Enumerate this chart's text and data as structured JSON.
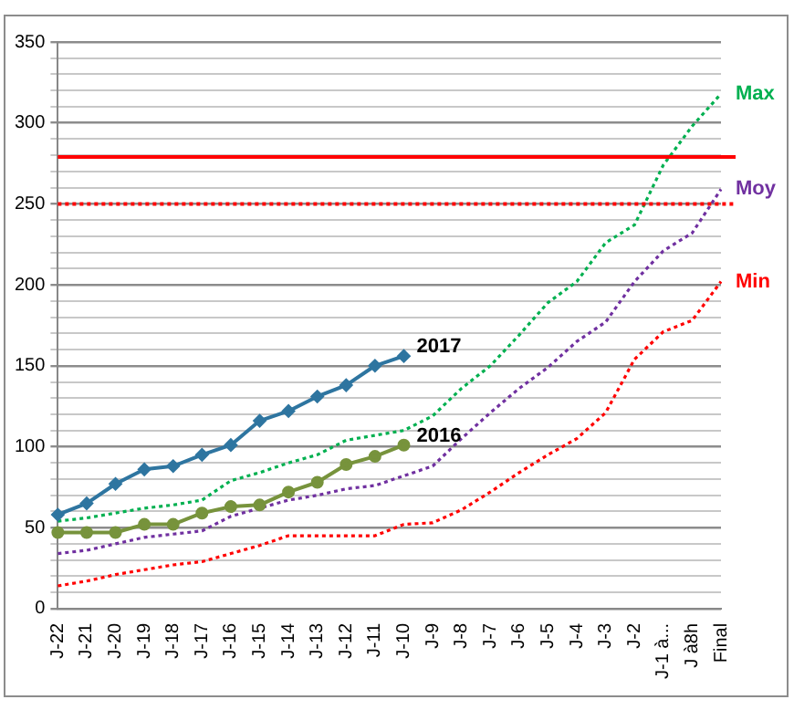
{
  "chart_data": {
    "type": "line",
    "categories": [
      "J-22",
      "J-21",
      "J-20",
      "J-19",
      "J-18",
      "J-17",
      "J-16",
      "J-15",
      "J-14",
      "J-13",
      "J-12",
      "J-11",
      "J-10",
      "J-9",
      "J-8",
      "J-7",
      "J-6",
      "J-5",
      "J-4",
      "J-3",
      "J-2",
      "J-1 à...",
      "J à8h",
      "Final"
    ],
    "series": [
      {
        "name": "2017",
        "color": "#2e75a0",
        "marker": "diamond",
        "line_style": "solid",
        "values": [
          58,
          65,
          77,
          86,
          88,
          95,
          101,
          116,
          122,
          131,
          138,
          150,
          156,
          null,
          null,
          null,
          null,
          null,
          null,
          null,
          null,
          null,
          null,
          null
        ]
      },
      {
        "name": "2016",
        "color": "#77933c",
        "marker": "circle",
        "line_style": "solid",
        "values": [
          47,
          47,
          47,
          52,
          52,
          59,
          63,
          64,
          72,
          78,
          89,
          94,
          101,
          null,
          null,
          null,
          null,
          null,
          null,
          null,
          null,
          null,
          null,
          null
        ]
      },
      {
        "name": "Max",
        "color": "#00b050",
        "marker": "none",
        "line_style": "dotted",
        "values": [
          54,
          56,
          59,
          62,
          64,
          67,
          79,
          84,
          90,
          95,
          104,
          107,
          110,
          119,
          136,
          150,
          169,
          189,
          202,
          226,
          237,
          274,
          298,
          318
        ]
      },
      {
        "name": "Moy",
        "color": "#7030a0",
        "marker": "none",
        "line_style": "dotted",
        "values": [
          34,
          36,
          40,
          44,
          46,
          48,
          57,
          62,
          67,
          70,
          74,
          76,
          82,
          88,
          105,
          121,
          136,
          149,
          165,
          177,
          202,
          221,
          232,
          259
        ]
      },
      {
        "name": "Min",
        "color": "#ff0000",
        "marker": "none",
        "line_style": "dotted",
        "values": [
          14,
          17,
          21,
          24,
          27,
          29,
          34,
          39,
          45,
          45,
          45,
          45,
          52,
          53,
          61,
          72,
          84,
          95,
          105,
          121,
          154,
          171,
          178,
          202
        ]
      }
    ],
    "ylim": [
      0,
      350
    ],
    "yticks": [
      0,
      {
        "value": 10,
        "label": null
      },
      {
        "value": 20,
        "label": null
      },
      {
        "value": 30,
        "label": null
      },
      {
        "value": 40,
        "label": null
      },
      50,
      {
        "value": 60,
        "label": null
      },
      {
        "value": 70,
        "label": null
      },
      {
        "value": 80,
        "label": null
      },
      {
        "value": 90,
        "label": null
      },
      100,
      {
        "value": 110,
        "label": null
      },
      {
        "value": 120,
        "label": null
      },
      {
        "value": 130,
        "label": null
      },
      {
        "value": 140,
        "label": null
      },
      150,
      {
        "value": 160,
        "label": null
      },
      {
        "value": 170,
        "label": null
      },
      {
        "value": 180,
        "label": null
      },
      {
        "value": 190,
        "label": null
      },
      200,
      {
        "value": 210,
        "label": null
      },
      {
        "value": 220,
        "label": null
      },
      {
        "value": 230,
        "label": null
      },
      {
        "value": 240,
        "label": null
      },
      250,
      {
        "value": 260,
        "label": null
      },
      {
        "value": 270,
        "label": null
      },
      {
        "value": 280,
        "label": null
      },
      {
        "value": 290,
        "label": null
      },
      300,
      {
        "value": 310,
        "label": null
      },
      {
        "value": 320,
        "label": null
      },
      {
        "value": 330,
        "label": null
      },
      {
        "value": 340,
        "label": null
      },
      350
    ],
    "ref_lines": [
      {
        "axis": "y",
        "value": 279,
        "color": "#ff0000",
        "line_style": "solid"
      },
      {
        "axis": "y",
        "value": 250,
        "color": "#ff0000",
        "line_style": "dotted"
      }
    ],
    "grid": "y",
    "legend": false
  }
}
